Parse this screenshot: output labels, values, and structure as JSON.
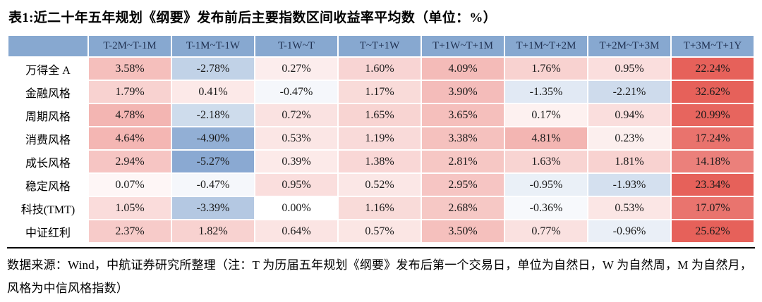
{
  "title": "表1:近二十年五年规划《纲要》发布前后主要指数区间收益率平均数（单位：%）",
  "footnote": "数据来源：Wind，中航证券研究所整理（注：T 为历届五年规划《纲要》发布后第一个交易日，单位为自然日，W 为自然周，M 为自然月，风格为中信风格指数）",
  "colors": {
    "header_bg": "#87a8d0",
    "header_text": "#1f3050",
    "rule": "#000000"
  },
  "heatmap": {
    "white": [
      255,
      255,
      255
    ],
    "positive_end": [
      230,
      97,
      90
    ],
    "negative_end": [
      137,
      169,
      210
    ],
    "positive_cap": 22,
    "negative_cap": 5.3
  },
  "chart_data": {
    "type": "heatmap",
    "title": "近二十年五年规划《纲要》发布前后主要指数区间收益率平均数",
    "unit": "%",
    "corner_label": "",
    "columns": [
      "T-2M~T-1M",
      "T-1M~T-1W",
      "T-1W~T",
      "T~T+1W",
      "T+1W~T+1M",
      "T+1M~T+2M",
      "T+2M~T+3M",
      "T+3M~T+1Y"
    ],
    "rows": [
      {
        "label": "万得全 A",
        "values": [
          3.58,
          -2.78,
          0.27,
          1.6,
          4.09,
          1.76,
          0.95,
          22.24
        ]
      },
      {
        "label": "金融风格",
        "values": [
          1.79,
          0.41,
          -0.47,
          1.17,
          3.9,
          -1.35,
          -2.21,
          32.62
        ]
      },
      {
        "label": "周期风格",
        "values": [
          4.78,
          -2.18,
          0.72,
          1.65,
          3.65,
          0.17,
          0.94,
          20.99
        ]
      },
      {
        "label": "消费风格",
        "values": [
          4.64,
          -4.9,
          0.53,
          1.19,
          3.38,
          4.81,
          0.23,
          17.24
        ]
      },
      {
        "label": "成长风格",
        "values": [
          2.94,
          -5.27,
          0.39,
          1.38,
          2.81,
          1.63,
          1.81,
          14.18
        ]
      },
      {
        "label": "稳定风格",
        "values": [
          0.07,
          -0.47,
          0.95,
          0.52,
          2.95,
          -0.95,
          -1.93,
          23.34
        ]
      },
      {
        "label": "科技(TMT)",
        "values": [
          1.05,
          -3.39,
          0.0,
          1.16,
          2.68,
          -0.36,
          0.53,
          17.07
        ]
      },
      {
        "label": "中证红利",
        "values": [
          2.37,
          1.82,
          0.64,
          0.57,
          3.5,
          0.77,
          -0.96,
          25.62
        ]
      }
    ]
  }
}
